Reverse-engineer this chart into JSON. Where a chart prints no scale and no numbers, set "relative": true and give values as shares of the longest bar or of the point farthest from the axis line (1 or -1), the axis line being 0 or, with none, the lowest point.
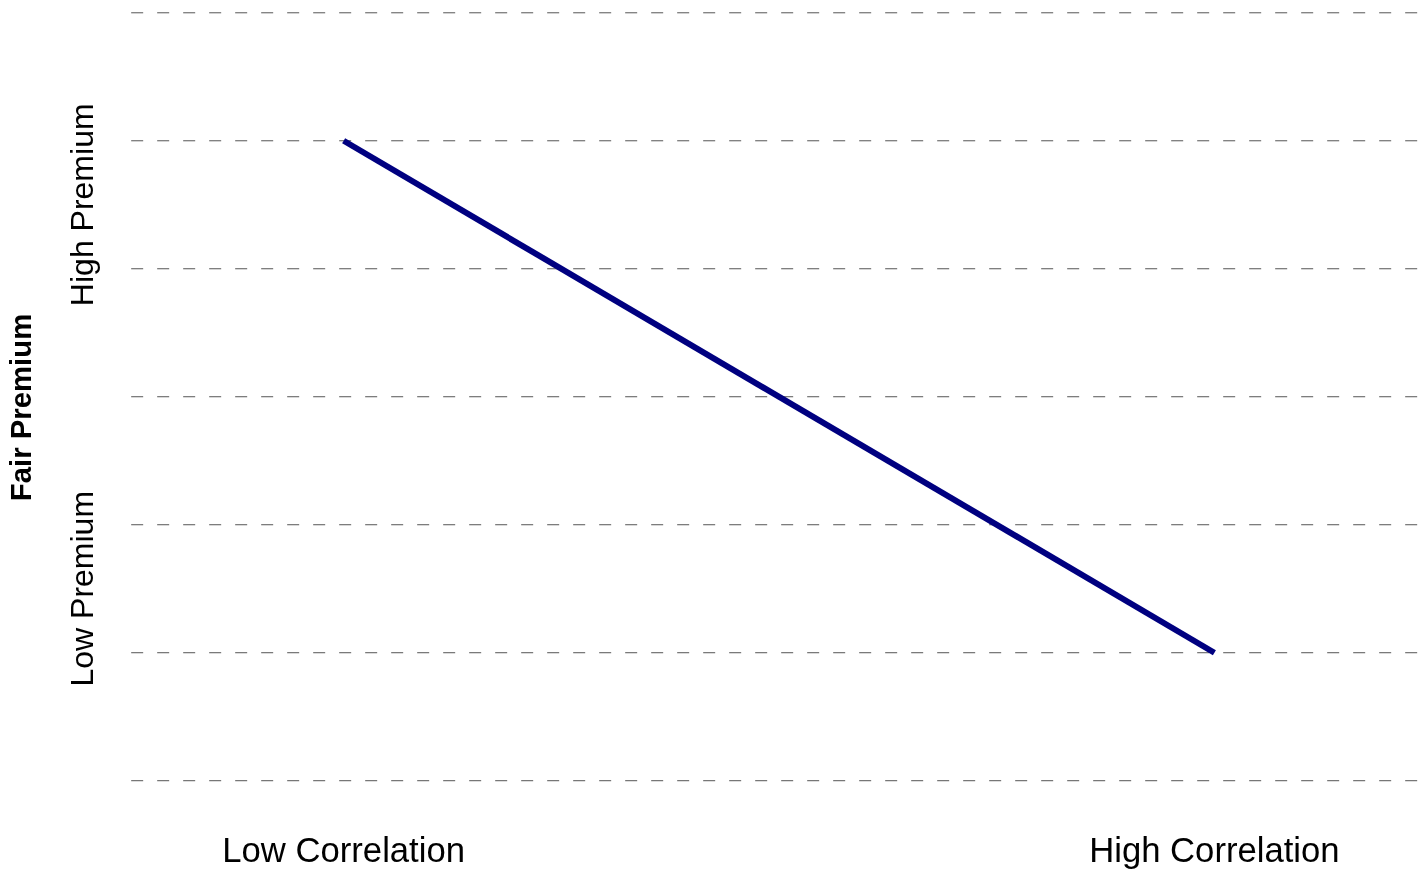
{
  "chart_data": {
    "type": "line",
    "relative": true,
    "ylabel": "Fair Premium",
    "categories": [
      "Low Correlation",
      "High Correlation"
    ],
    "series": [
      {
        "color": "#000080",
        "values": [
          1,
          0
        ]
      }
    ],
    "annotations": [
      "Low Premium",
      "High Premium"
    ],
    "grid": "y",
    "marker": "none",
    "line_style": "solid"
  }
}
